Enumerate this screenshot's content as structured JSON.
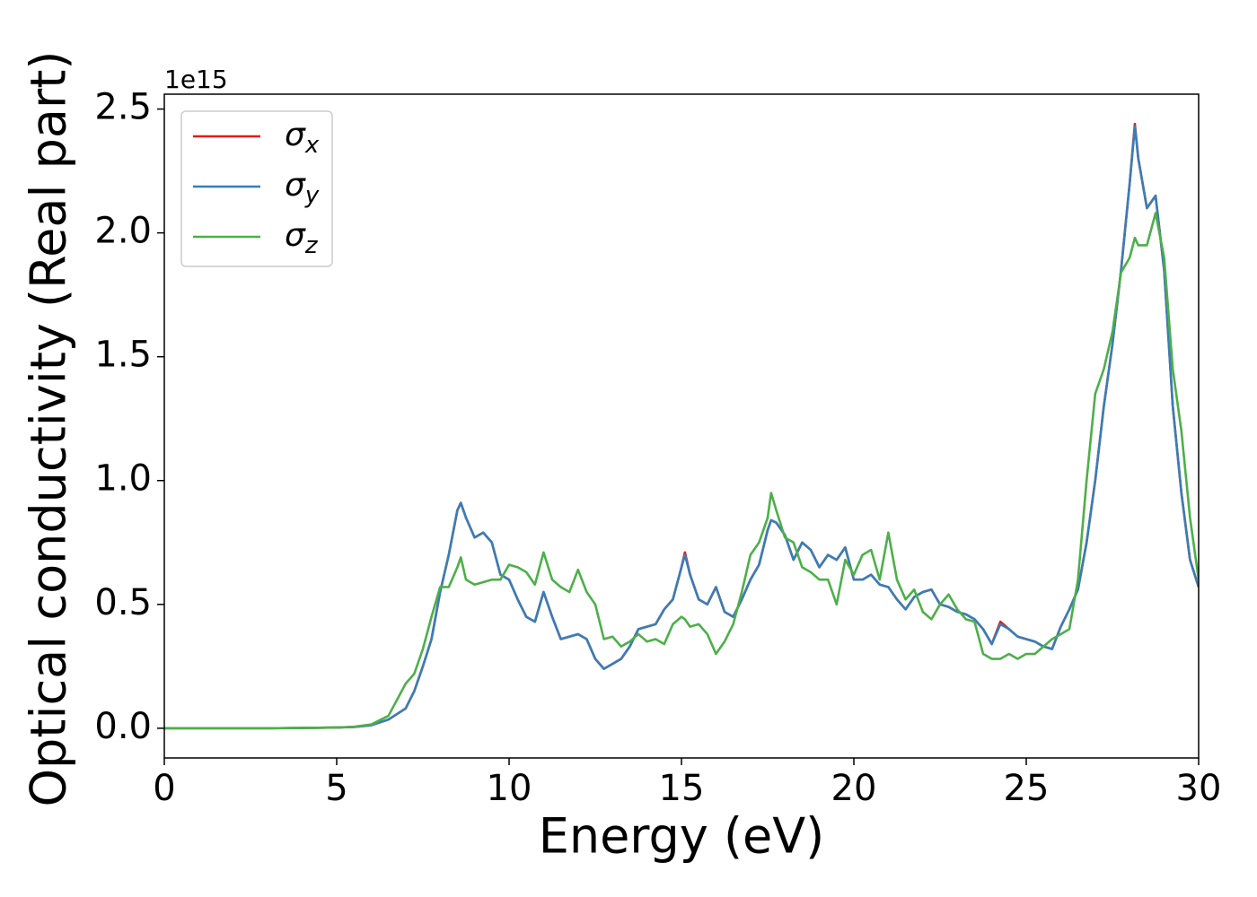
{
  "chart_data": {
    "type": "line",
    "xlabel": "Energy (eV)",
    "ylabel": "Optical conductivity (Real part)",
    "y_offset_label": "1e15",
    "x": [
      0,
      1,
      2,
      3,
      4,
      5,
      5.5,
      6,
      6.5,
      7,
      7.25,
      7.5,
      7.75,
      8,
      8.25,
      8.5,
      8.6,
      8.75,
      9,
      9.25,
      9.5,
      9.75,
      10,
      10.25,
      10.5,
      10.75,
      11,
      11.25,
      11.5,
      11.75,
      12,
      12.25,
      12.5,
      12.75,
      13,
      13.25,
      13.5,
      13.75,
      14,
      14.25,
      14.5,
      14.75,
      15,
      15.1,
      15.25,
      15.5,
      15.75,
      16,
      16.25,
      16.5,
      16.75,
      17,
      17.25,
      17.5,
      17.6,
      17.75,
      18,
      18.25,
      18.5,
      18.75,
      19,
      19.25,
      19.5,
      19.75,
      20,
      20.25,
      20.5,
      20.75,
      21,
      21.25,
      21.5,
      21.75,
      22,
      22.25,
      22.5,
      22.75,
      23,
      23.25,
      23.5,
      23.75,
      24,
      24.25,
      24.5,
      24.75,
      25,
      25.25,
      25.5,
      25.75,
      26,
      26.25,
      26.5,
      26.75,
      27,
      27.25,
      27.5,
      27.75,
      28,
      28.15,
      28.25,
      28.5,
      28.75,
      29,
      29.25,
      29.5,
      29.75,
      30
    ],
    "series": [
      {
        "name": "σx",
        "color": "#e41a1c",
        "values": [
          0,
          0,
          0,
          0,
          0.001,
          0.003,
          0.005,
          0.012,
          0.035,
          0.08,
          0.15,
          0.25,
          0.36,
          0.55,
          0.7,
          0.88,
          0.91,
          0.85,
          0.77,
          0.79,
          0.75,
          0.62,
          0.6,
          0.52,
          0.45,
          0.43,
          0.55,
          0.45,
          0.36,
          0.37,
          0.38,
          0.36,
          0.28,
          0.24,
          0.26,
          0.28,
          0.33,
          0.4,
          0.41,
          0.42,
          0.48,
          0.52,
          0.65,
          0.71,
          0.62,
          0.52,
          0.5,
          0.57,
          0.47,
          0.45,
          0.52,
          0.6,
          0.66,
          0.8,
          0.84,
          0.83,
          0.78,
          0.68,
          0.75,
          0.72,
          0.65,
          0.7,
          0.68,
          0.73,
          0.6,
          0.6,
          0.62,
          0.58,
          0.57,
          0.52,
          0.48,
          0.53,
          0.55,
          0.56,
          0.5,
          0.49,
          0.47,
          0.46,
          0.44,
          0.4,
          0.34,
          0.43,
          0.4,
          0.37,
          0.36,
          0.35,
          0.33,
          0.32,
          0.41,
          0.48,
          0.56,
          0.75,
          1.0,
          1.3,
          1.55,
          1.85,
          2.2,
          2.44,
          2.3,
          2.1,
          2.15,
          1.85,
          1.3,
          0.95,
          0.68,
          0.57
        ]
      },
      {
        "name": "σy",
        "color": "#377eb8",
        "values": [
          0,
          0,
          0,
          0,
          0.001,
          0.003,
          0.005,
          0.012,
          0.035,
          0.08,
          0.15,
          0.25,
          0.36,
          0.55,
          0.7,
          0.88,
          0.91,
          0.85,
          0.77,
          0.79,
          0.75,
          0.62,
          0.6,
          0.52,
          0.45,
          0.43,
          0.55,
          0.45,
          0.36,
          0.37,
          0.38,
          0.36,
          0.28,
          0.24,
          0.26,
          0.28,
          0.33,
          0.4,
          0.41,
          0.42,
          0.48,
          0.52,
          0.65,
          0.7,
          0.62,
          0.52,
          0.5,
          0.57,
          0.47,
          0.45,
          0.52,
          0.6,
          0.66,
          0.8,
          0.84,
          0.83,
          0.78,
          0.68,
          0.75,
          0.72,
          0.65,
          0.7,
          0.68,
          0.73,
          0.6,
          0.6,
          0.62,
          0.58,
          0.57,
          0.52,
          0.48,
          0.53,
          0.55,
          0.56,
          0.5,
          0.49,
          0.47,
          0.46,
          0.44,
          0.4,
          0.34,
          0.42,
          0.4,
          0.37,
          0.36,
          0.35,
          0.33,
          0.32,
          0.41,
          0.48,
          0.56,
          0.75,
          1.0,
          1.3,
          1.55,
          1.85,
          2.2,
          2.43,
          2.3,
          2.1,
          2.15,
          1.85,
          1.3,
          0.95,
          0.68,
          0.57
        ]
      },
      {
        "name": "σz",
        "color": "#4daf4a",
        "values": [
          0,
          0,
          0,
          0,
          0.001,
          0.003,
          0.006,
          0.015,
          0.05,
          0.18,
          0.22,
          0.32,
          0.45,
          0.57,
          0.57,
          0.65,
          0.69,
          0.6,
          0.58,
          0.59,
          0.6,
          0.6,
          0.66,
          0.65,
          0.63,
          0.58,
          0.71,
          0.6,
          0.57,
          0.55,
          0.64,
          0.55,
          0.5,
          0.36,
          0.37,
          0.33,
          0.35,
          0.38,
          0.35,
          0.36,
          0.34,
          0.42,
          0.45,
          0.44,
          0.41,
          0.42,
          0.38,
          0.3,
          0.35,
          0.42,
          0.55,
          0.7,
          0.75,
          0.85,
          0.95,
          0.88,
          0.77,
          0.75,
          0.65,
          0.63,
          0.6,
          0.6,
          0.5,
          0.68,
          0.62,
          0.7,
          0.72,
          0.6,
          0.79,
          0.6,
          0.52,
          0.56,
          0.47,
          0.44,
          0.5,
          0.54,
          0.48,
          0.44,
          0.43,
          0.3,
          0.28,
          0.28,
          0.3,
          0.28,
          0.3,
          0.3,
          0.33,
          0.36,
          0.38,
          0.4,
          0.6,
          1.0,
          1.35,
          1.45,
          1.6,
          1.84,
          1.9,
          1.98,
          1.95,
          1.95,
          2.08,
          1.9,
          1.45,
          1.2,
          0.85,
          0.6
        ]
      }
    ],
    "xlim": [
      0,
      30
    ],
    "xticks": [
      0,
      5,
      10,
      15,
      20,
      25,
      30
    ],
    "ylim": [
      -0.12,
      2.56
    ],
    "yticks": [
      {
        "value": 0,
        "label": "0.0"
      },
      {
        "value": 0.5,
        "label": "0.5"
      },
      {
        "value": 1,
        "label": "1.0"
      },
      {
        "value": 1.5,
        "label": "1.5"
      },
      {
        "value": 2,
        "label": "2.0"
      },
      {
        "value": 2.5,
        "label": "2.5"
      }
    ],
    "legend": "upper left",
    "grid": false
  }
}
